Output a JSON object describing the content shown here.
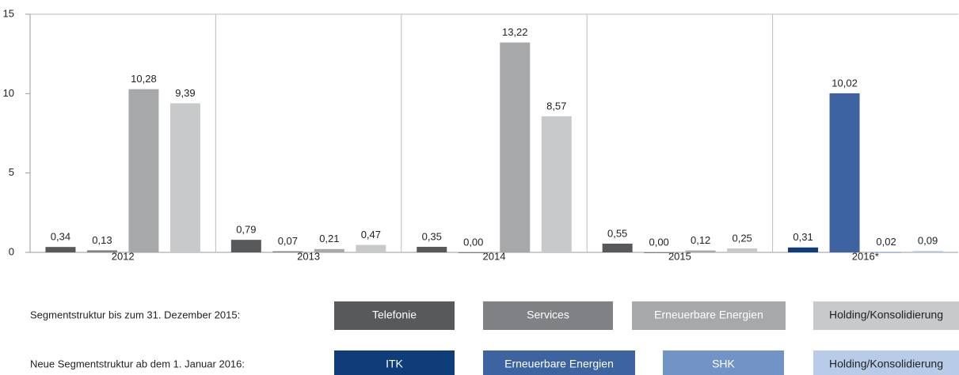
{
  "chart_data": {
    "type": "bar",
    "categories": [
      "2012",
      "2013",
      "2014",
      "2015",
      "2016*"
    ],
    "ylim": [
      0,
      15
    ],
    "yticks": [
      0,
      5,
      10,
      15
    ],
    "series_groups": [
      {
        "name": "Segmentstruktur bis zum 31. Dezember 2015:",
        "series": [
          {
            "name": "Telefonie",
            "color": "#58595b",
            "values": [
              0.34,
              0.79,
              0.35,
              0.55,
              null
            ],
            "value_labels": [
              "0,34",
              "0,79",
              "0,35",
              "0,55",
              null
            ]
          },
          {
            "name": "Services",
            "color": "#808184",
            "values": [
              0.13,
              0.07,
              0.0,
              0.0,
              null
            ],
            "value_labels": [
              "0,13",
              "0,07",
              "0,00",
              "0,00",
              null
            ]
          },
          {
            "name": "Erneuerbare Energien",
            "color": "#a7a8aa",
            "values": [
              10.28,
              0.21,
              13.22,
              0.12,
              null
            ],
            "value_labels": [
              "10,28",
              "0,21",
              "13,22",
              "0,12",
              null
            ]
          },
          {
            "name": "Holding/Konsolidierung",
            "color": "#c8c9cb",
            "values": [
              9.39,
              0.47,
              8.57,
              0.25,
              null
            ],
            "value_labels": [
              "9,39",
              "0,47",
              "8,57",
              "0,25",
              null
            ]
          }
        ]
      },
      {
        "name": "Neue Segmentstruktur ab dem 1. Januar 2016:",
        "series": [
          {
            "name": "ITK",
            "color": "#0f3d7a",
            "values": [
              null,
              null,
              null,
              null,
              0.31
            ],
            "value_labels": [
              null,
              null,
              null,
              null,
              "0,31"
            ]
          },
          {
            "name": "Erneuerbare Energien",
            "color": "#3d64a0",
            "values": [
              null,
              null,
              null,
              null,
              10.02
            ],
            "value_labels": [
              null,
              null,
              null,
              null,
              "10,02"
            ]
          },
          {
            "name": "SHK",
            "color": "#7293c6",
            "values": [
              null,
              null,
              null,
              null,
              0.02
            ],
            "value_labels": [
              null,
              null,
              null,
              null,
              "0,02"
            ]
          },
          {
            "name": "Holding/Konsolidierung",
            "color": "#b8cce9",
            "values": [
              null,
              null,
              null,
              null,
              0.09
            ],
            "value_labels": [
              null,
              null,
              null,
              null,
              "0,09"
            ]
          }
        ]
      }
    ]
  }
}
